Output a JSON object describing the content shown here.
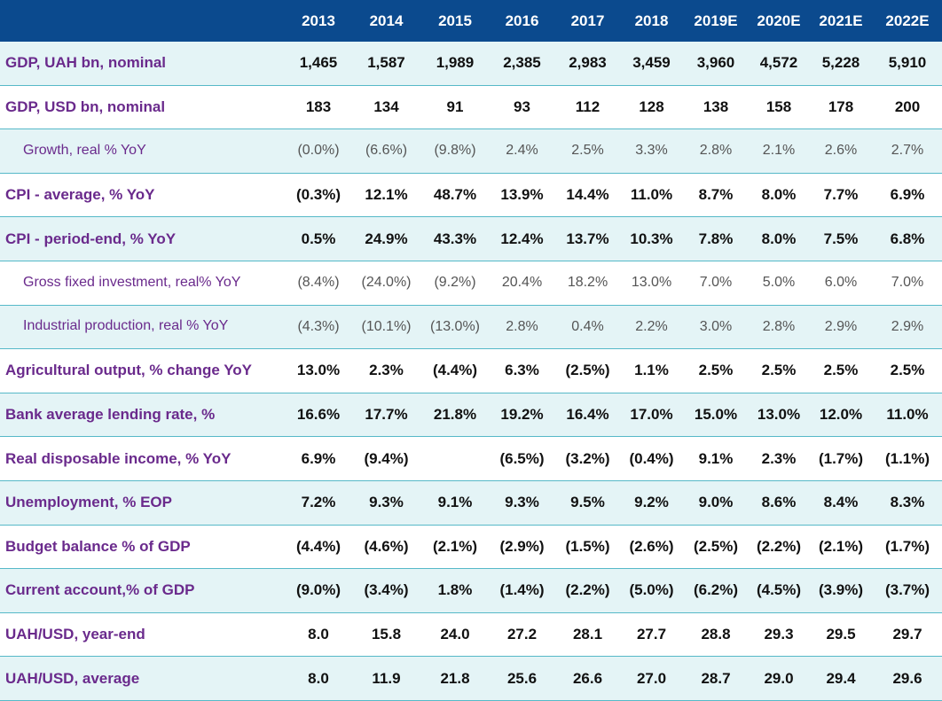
{
  "table": {
    "columns": [
      "2013",
      "2014",
      "2015",
      "2016",
      "2017",
      "2018",
      "2019E",
      "2020E",
      "2021E",
      "2022E"
    ],
    "rows": [
      {
        "label": "GDP, UAH bn, nominal",
        "bold": true,
        "values": [
          "1,465",
          "1,587",
          "1,989",
          "2,385",
          "2,983",
          "3,459",
          "3,960",
          "4,572",
          "5,228",
          "5,910"
        ]
      },
      {
        "label": "GDP, USD bn, nominal",
        "bold": true,
        "values": [
          "183",
          "134",
          "91",
          "93",
          "112",
          "128",
          "138",
          "158",
          "178",
          "200"
        ]
      },
      {
        "label": "Growth, real % YoY",
        "bold": false,
        "values": [
          "(0.0%)",
          "(6.6%)",
          "(9.8%)",
          "2.4%",
          "2.5%",
          "3.3%",
          "2.8%",
          "2.1%",
          "2.6%",
          "2.7%"
        ]
      },
      {
        "label": "CPI - average, % YoY",
        "bold": true,
        "values": [
          "(0.3%)",
          "12.1%",
          "48.7%",
          "13.9%",
          "14.4%",
          "11.0%",
          "8.7%",
          "8.0%",
          "7.7%",
          "6.9%"
        ]
      },
      {
        "label": "CPI - period-end, % YoY",
        "bold": true,
        "values": [
          "0.5%",
          "24.9%",
          "43.3%",
          "12.4%",
          "13.7%",
          "10.3%",
          "7.8%",
          "8.0%",
          "7.5%",
          "6.8%"
        ]
      },
      {
        "label": "Gross fixed investment, real% YoY",
        "bold": false,
        "values": [
          "(8.4%)",
          "(24.0%)",
          "(9.2%)",
          "20.4%",
          "18.2%",
          "13.0%",
          "7.0%",
          "5.0%",
          "6.0%",
          "7.0%"
        ]
      },
      {
        "label": "Industrial production, real % YoY",
        "bold": false,
        "values": [
          "(4.3%)",
          "(10.1%)",
          "(13.0%)",
          "2.8%",
          "0.4%",
          "2.2%",
          "3.0%",
          "2.8%",
          "2.9%",
          "2.9%"
        ]
      },
      {
        "label": "Agricultural output, % change YoY",
        "bold": true,
        "values": [
          "13.0%",
          "2.3%",
          "(4.4%)",
          "6.3%",
          "(2.5%)",
          "1.1%",
          "2.5%",
          "2.5%",
          "2.5%",
          "2.5%"
        ]
      },
      {
        "label": "Bank average lending rate, %",
        "bold": true,
        "values": [
          "16.6%",
          "17.7%",
          "21.8%",
          "19.2%",
          "16.4%",
          "17.0%",
          "15.0%",
          "13.0%",
          "12.0%",
          "11.0%"
        ]
      },
      {
        "label": "Real disposable income, % YoY",
        "bold": true,
        "values": [
          "6.9%",
          "(9.4%)",
          null,
          "(6.5%)",
          "(3.2%)",
          "(0.4%)",
          "9.1%",
          "2.3%",
          "(1.7%)",
          "(1.1%)"
        ]
      },
      {
        "label": "Unemployment, % EOP",
        "bold": true,
        "values": [
          "7.2%",
          "9.3%",
          "9.1%",
          "9.3%",
          "9.5%",
          "9.2%",
          "9.0%",
          "8.6%",
          "8.4%",
          "8.3%"
        ]
      },
      {
        "label": "Budget balance % of GDP",
        "bold": true,
        "values": [
          "(4.4%)",
          "(4.6%)",
          "(2.1%)",
          "(2.9%)",
          "(1.5%)",
          "(2.6%)",
          "(2.5%)",
          "(2.2%)",
          "(2.1%)",
          "(1.7%)"
        ]
      },
      {
        "label": "Current account,% of GDP",
        "bold": true,
        "values": [
          "(9.0%)",
          "(3.4%)",
          "1.8%",
          "(1.4%)",
          "(2.2%)",
          "(5.0%)",
          "(6.2%)",
          "(4.5%)",
          "(3.9%)",
          "(3.7%)"
        ]
      },
      {
        "label": "UAH/USD, year-end",
        "bold": true,
        "values": [
          "8.0",
          "15.8",
          "24.0",
          "27.2",
          "28.1",
          "27.7",
          "28.8",
          "29.3",
          "29.5",
          "29.7"
        ]
      },
      {
        "label": "UAH/USD, average",
        "bold": true,
        "values": [
          "8.0",
          "11.9",
          "21.8",
          "25.6",
          "26.6",
          "27.0",
          "28.7",
          "29.0",
          "29.4",
          "29.6"
        ]
      }
    ]
  }
}
